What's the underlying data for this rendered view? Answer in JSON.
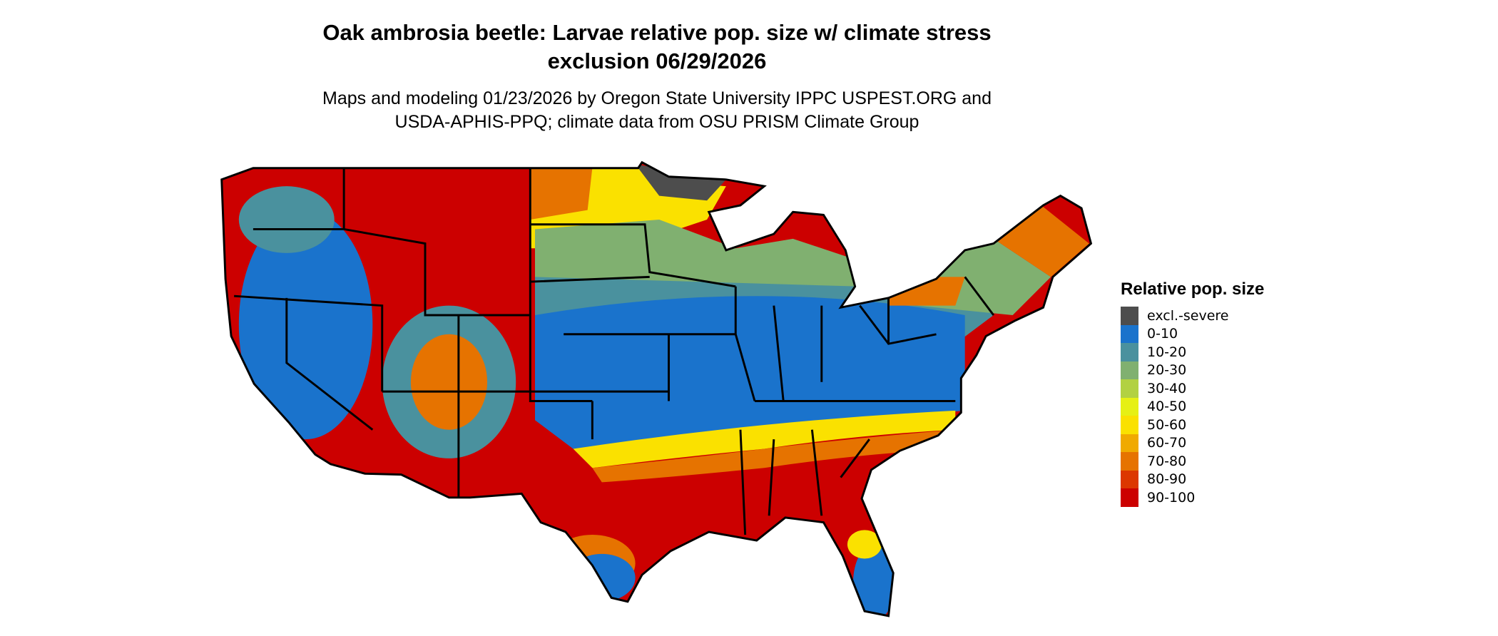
{
  "title": {
    "line1": "Oak ambrosia beetle: Larvae relative pop. size w/ climate stress",
    "line2": "exclusion 06/29/2026"
  },
  "subtitle": {
    "line1": "Maps and modeling 01/23/2026 by Oregon State University IPPC USPEST.ORG and",
    "line2": "USDA-APHIS-PPQ; climate data from OSU PRISM Climate Group"
  },
  "map": {
    "region": "Contiguous United States",
    "background_color": "#ffffff",
    "border_color": "#000000"
  },
  "legend": {
    "title": "Relative pop. size",
    "items": [
      {
        "label": "excl.-severe",
        "color": "#4d4d4d"
      },
      {
        "label": "0-10",
        "color": "#1a73cc"
      },
      {
        "label": "10-20",
        "color": "#4a919e"
      },
      {
        "label": "20-30",
        "color": "#80b070"
      },
      {
        "label": "30-40",
        "color": "#b2d142"
      },
      {
        "label": "40-50",
        "color": "#e6f014"
      },
      {
        "label": "50-60",
        "color": "#fae100"
      },
      {
        "label": "60-70",
        "color": "#f0aa00"
      },
      {
        "label": "70-80",
        "color": "#e67300"
      },
      {
        "label": "80-90",
        "color": "#dc3700"
      },
      {
        "label": "90-100",
        "color": "#cc0000"
      }
    ]
  }
}
